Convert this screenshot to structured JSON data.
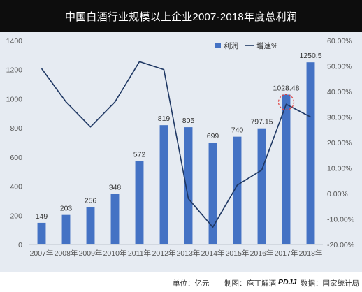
{
  "title": "中国白酒行业规模以上企业2007-2018年度总利润",
  "chart_data": {
    "type": "bar",
    "categories": [
      "2007年",
      "2008年",
      "2009年",
      "2010年",
      "2011年",
      "2012年",
      "2013年",
      "2014年",
      "2015年",
      "2016年",
      "2017年",
      "2018年"
    ],
    "series": [
      {
        "name": "利润",
        "type": "bar",
        "axis": "left",
        "color": "#4472c4",
        "values": [
          149,
          203,
          256,
          348,
          572,
          819,
          805,
          699,
          740,
          797.15,
          1028.48,
          1250.5
        ],
        "labels": [
          "149",
          "203",
          "256",
          "348",
          "572",
          "819",
          "805",
          "699",
          "740",
          "797.15",
          "1028.48",
          "1250.5"
        ]
      },
      {
        "name": "增速%",
        "type": "line",
        "axis": "right",
        "color": "#1f3864",
        "values": [
          49,
          35.9,
          26.1,
          35.9,
          51.7,
          48.6,
          -2,
          -13.2,
          3.3,
          9.2,
          35,
          30
        ]
      }
    ],
    "y_left": {
      "min": 0,
      "max": 1400,
      "ticks": [
        "0",
        "200",
        "400",
        "600",
        "800",
        "1000",
        "1200",
        "1400"
      ]
    },
    "y_right": {
      "min": -20,
      "max": 60,
      "ticks": [
        "-20.00%",
        "-10.00%",
        "0.00%",
        "10.00%",
        "20.00%",
        "30.00%",
        "40.00%",
        "50.00%",
        "60.00%"
      ]
    },
    "legend_position": "top-right",
    "highlight_category": "2017年",
    "grid": false
  },
  "footer": {
    "unit": "单位：亿元",
    "made_by_prefix": "制图：",
    "made_by_name": "庖丁解酒",
    "made_by_logo": "PDJJ",
    "source": "数据：国家统计局"
  }
}
